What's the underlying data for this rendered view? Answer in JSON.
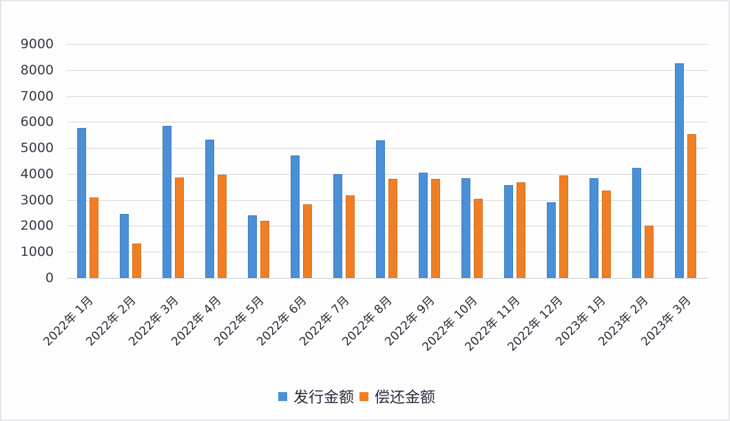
{
  "colors": {
    "issue": "#4a90d6",
    "repay": "#ef7f25",
    "grid": "#d5d8de",
    "text": "#3b3546"
  },
  "legend": [
    {
      "label": "发行金额",
      "color": "#4a90d6"
    },
    {
      "label": "偿还金额",
      "color": "#ef7f25"
    }
  ],
  "y_ticks": [
    "9000",
    "8000",
    "7000",
    "6000",
    "5000",
    "4000",
    "3000",
    "2000",
    "1000",
    "0"
  ],
  "chart_data": {
    "type": "bar",
    "title": "",
    "xlabel": "",
    "ylabel": "",
    "ylim": [
      0,
      9000
    ],
    "grid": true,
    "legend_position": "bottom",
    "categories": [
      "2022年 1月",
      "2022年 2月",
      "2022年 3月",
      "2022年 4月",
      "2022年 5月",
      "2022年 6月",
      "2022年 7月",
      "2022年 8月",
      "2022年 9月",
      "2022年 10月",
      "2022年 11月",
      "2022年 12月",
      "2023年 1月",
      "2023年 2月",
      "2023年 3月"
    ],
    "series": [
      {
        "name": "发行金额",
        "values": [
          5760,
          2470,
          5860,
          5330,
          2420,
          4700,
          4010,
          5290,
          4060,
          3850,
          3580,
          2900,
          3850,
          4230,
          8250
        ]
      },
      {
        "name": "偿还金额",
        "values": [
          3110,
          1320,
          3860,
          3960,
          2210,
          2840,
          3170,
          3810,
          3810,
          3050,
          3690,
          3950,
          3370,
          2000,
          5540
        ]
      }
    ]
  }
}
